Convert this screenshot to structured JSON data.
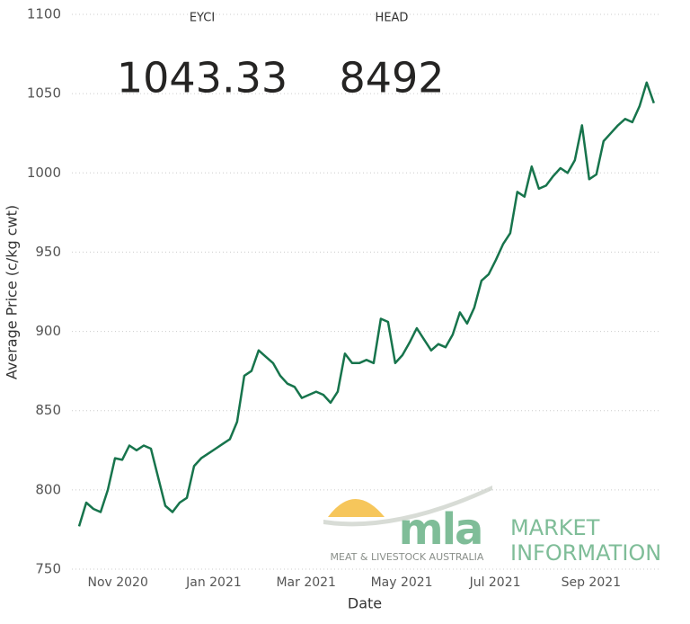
{
  "chart_data": {
    "type": "line",
    "xlabel": "Date",
    "ylabel": "Average Price (c/kg cwt)",
    "kpis": [
      {
        "label": "EYCI",
        "value": 1043.33
      },
      {
        "label": "HEAD",
        "value": 8492
      }
    ],
    "series": [
      {
        "name": "EYCI",
        "color": "#17744c",
        "values": [
          777,
          792,
          788,
          786,
          800,
          820,
          819,
          828,
          825,
          828,
          826,
          808,
          790,
          786,
          792,
          795,
          815,
          820,
          823,
          826,
          829,
          832,
          843,
          872,
          875,
          888,
          884,
          880,
          872,
          867,
          865,
          858,
          860,
          862,
          860,
          855,
          862,
          886,
          880,
          880,
          882,
          880,
          908,
          906,
          880,
          885,
          893,
          902,
          895,
          888,
          892,
          890,
          898,
          912,
          905,
          915,
          932,
          936,
          945,
          955,
          962,
          988,
          985,
          1004,
          990,
          992,
          998,
          1003,
          1000,
          1008,
          1030,
          996,
          999,
          1020,
          1025,
          1030,
          1034,
          1032,
          1042,
          1057,
          1044
        ]
      }
    ],
    "xlim": [
      -1,
      80.9
    ],
    "xticks": [
      {
        "value": 5.4,
        "label": "Nov 2020"
      },
      {
        "value": 18.75,
        "label": "Jan 2021"
      },
      {
        "value": 31.6,
        "label": "Mar 2021"
      },
      {
        "value": 44.9,
        "label": "May 2021"
      },
      {
        "value": 57.9,
        "label": "Jul 2021"
      },
      {
        "value": 71.25,
        "label": "Sep 2021"
      }
    ],
    "ylim": [
      750,
      1100
    ],
    "yticks": [
      750,
      800,
      850,
      900,
      950,
      1000,
      1050,
      1100
    ],
    "grid": true
  },
  "logo": {
    "mark": "mla",
    "tagline": "MEAT & LIVESTOCK AUSTRALIA",
    "line1": "MARKET",
    "line2": "INFORMATION"
  }
}
